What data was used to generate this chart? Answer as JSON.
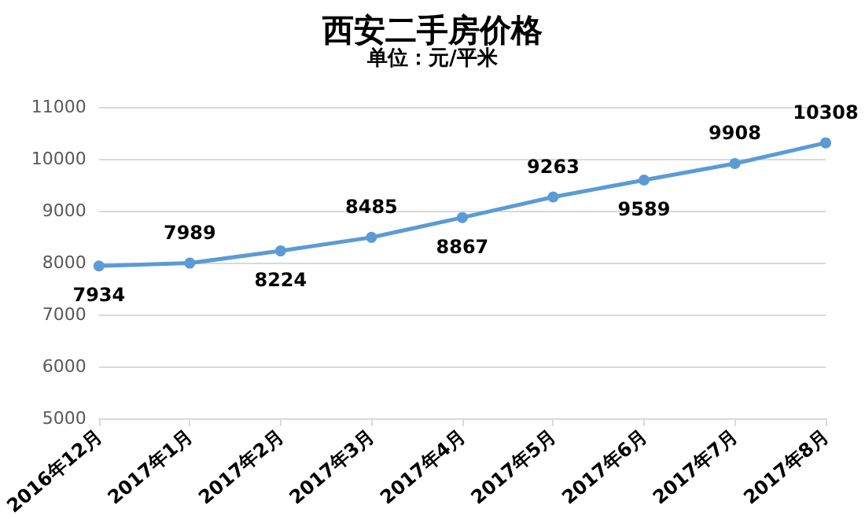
{
  "chart_data": {
    "type": "line",
    "title": "西安二手房价格",
    "subtitle": "单位：元/平米",
    "categories": [
      "2016年12月",
      "2017年1月",
      "2017年2月",
      "2017年3月",
      "2017年4月",
      "2017年5月",
      "2017年6月",
      "2017年7月",
      "2017年8月"
    ],
    "series": [
      {
        "color": "#5b9bd5",
        "values": [
          7934,
          7989,
          8224,
          8485,
          8867,
          9263,
          9589,
          9908,
          10308
        ]
      }
    ],
    "ylim": [
      5000,
      11000
    ],
    "yticks": [
      5000,
      6000,
      7000,
      8000,
      9000,
      10000,
      11000
    ],
    "grid": "y",
    "marker": "circle",
    "line_style": "solid",
    "data_labels": true
  }
}
